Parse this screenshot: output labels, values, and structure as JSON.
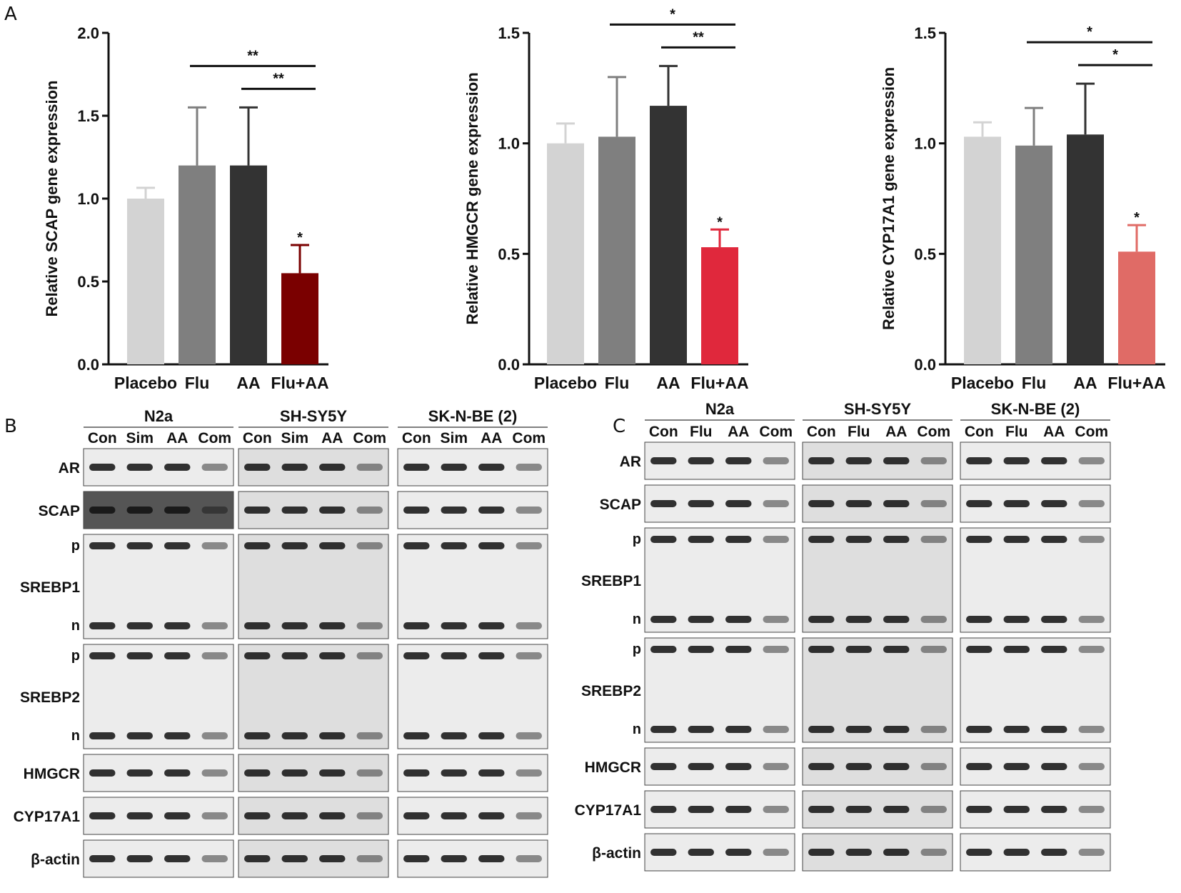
{
  "panel_labels": [
    "A",
    "B",
    "C"
  ],
  "chart_data": [
    {
      "type": "bar",
      "categories": [
        "Placebo",
        "Flu",
        "AA",
        "Flu+AA"
      ],
      "values": [
        1.0,
        1.2,
        1.2,
        0.55
      ],
      "errors": [
        0.065,
        0.35,
        0.35,
        0.17
      ],
      "colors": [
        "#d3d3d3",
        "#7f7f7f",
        "#333333",
        "#7a0000"
      ],
      "ylabel": "Relative SCAP gene expression",
      "ylim": [
        0,
        2.0
      ],
      "yticks": [
        "0.0",
        "0.5",
        "1.0",
        "1.5",
        "2.0"
      ],
      "bar_marks": [
        "",
        "",
        "",
        "*"
      ],
      "significance": [
        {
          "from": 2,
          "to": 3,
          "label": "**"
        },
        {
          "from": 1,
          "to": 3,
          "label": "**"
        }
      ]
    },
    {
      "type": "bar",
      "categories": [
        "Placebo",
        "Flu",
        "AA",
        "Flu+AA"
      ],
      "values": [
        1.0,
        1.03,
        1.17,
        0.53
      ],
      "errors": [
        0.09,
        0.27,
        0.18,
        0.08
      ],
      "colors": [
        "#d3d3d3",
        "#7f7f7f",
        "#333333",
        "#e0283c"
      ],
      "ylabel": "Relative HMGCR gene expression",
      "ylim": [
        0,
        1.5
      ],
      "yticks": [
        "0.0",
        "0.5",
        "1.0",
        "1.5"
      ],
      "bar_marks": [
        "",
        "",
        "",
        "*"
      ],
      "significance": [
        {
          "from": 2,
          "to": 3,
          "label": "**"
        },
        {
          "from": 1,
          "to": 3,
          "label": "*"
        }
      ]
    },
    {
      "type": "bar",
      "categories": [
        "Placebo",
        "Flu",
        "AA",
        "Flu+AA"
      ],
      "values": [
        1.03,
        0.99,
        1.04,
        0.51
      ],
      "errors": [
        0.065,
        0.17,
        0.23,
        0.12
      ],
      "colors": [
        "#d3d3d3",
        "#7f7f7f",
        "#333333",
        "#e06b66"
      ],
      "ylabel": "Relative CYP17A1 gene expression",
      "ylim": [
        0,
        1.5
      ],
      "yticks": [
        "0.0",
        "0.5",
        "1.0",
        "1.5"
      ],
      "bar_marks": [
        "",
        "",
        "",
        "*"
      ],
      "significance": [
        {
          "from": 2,
          "to": 3,
          "label": "*"
        },
        {
          "from": 1,
          "to": 3,
          "label": "*"
        }
      ]
    }
  ],
  "blots": {
    "B": {
      "cell_lines": [
        "N2a",
        "SH-SY5Y",
        "SK-N-BE (2)"
      ],
      "lanes": [
        "Con",
        "Sim",
        "AA",
        "Com"
      ],
      "proteins": [
        "AR",
        "SCAP",
        "SREBP1",
        "SREBP2",
        "HMGCR",
        "CYP17A1",
        "β-actin"
      ],
      "sublabels": [
        "p",
        "n"
      ]
    },
    "C": {
      "cell_lines": [
        "N2a",
        "SH-SY5Y",
        "SK-N-BE (2)"
      ],
      "lanes": [
        "Con",
        "Flu",
        "AA",
        "Com"
      ],
      "proteins": [
        "AR",
        "SCAP",
        "SREBP1",
        "SREBP2",
        "HMGCR",
        "CYP17A1",
        "β-actin"
      ],
      "sublabels": [
        "p",
        "n"
      ]
    }
  }
}
